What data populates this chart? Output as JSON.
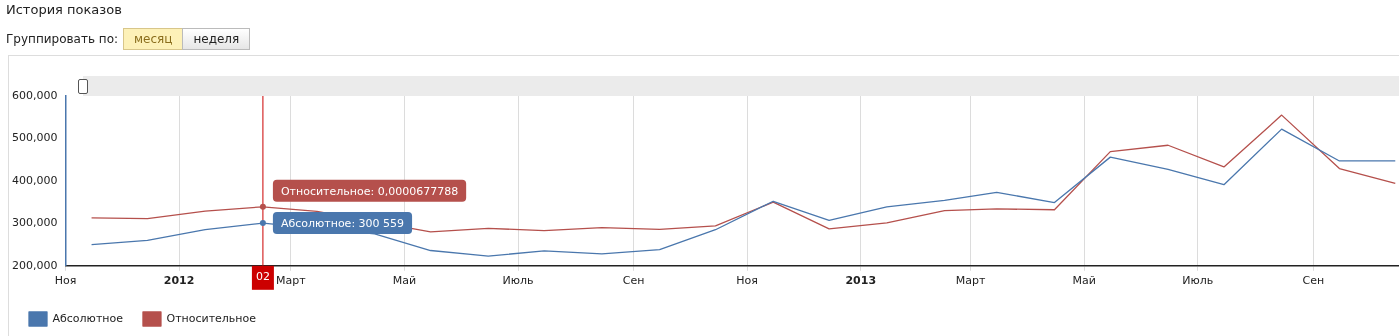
{
  "chart_data": {
    "type": "line",
    "title": "История показов",
    "x": [
      "2011-11-15",
      "2011-12-15",
      "2012-01-15",
      "2012-02-15",
      "2012-03-15",
      "2012-04-15",
      "2012-05-15",
      "2012-06-15",
      "2012-07-15",
      "2012-08-15",
      "2012-09-15",
      "2012-10-15",
      "2012-11-15",
      "2012-12-15",
      "2013-01-15",
      "2013-02-15",
      "2013-03-15",
      "2013-04-15",
      "2013-05-15",
      "2013-06-15",
      "2013-07-15",
      "2013-08-15",
      "2013-09-15",
      "2013-10-15"
    ],
    "series": [
      {
        "name": "Абсолютное",
        "color": "#4a77ad",
        "values": [
          250000,
          260000,
          285000,
          300559,
          null,
          275000,
          236000,
          223000,
          235000,
          228000,
          238000,
          285000,
          352000,
          307000,
          339000,
          354000,
          373000,
          349000,
          456000,
          427000,
          391000,
          522000,
          447000,
          447000
        ]
      },
      {
        "name": "Относительное",
        "color": "#b5504c",
        "values": [
          313000,
          311000,
          329000,
          339000,
          328000,
          null,
          280000,
          288000,
          283000,
          290000,
          286000,
          294000,
          350000,
          287000,
          301000,
          330000,
          334000,
          332000,
          469000,
          484000,
          433000,
          555000,
          429000,
          394000
        ]
      }
    ],
    "xlim": [
      "2011-11-01",
      "2013-10-17"
    ],
    "xticks": [
      {
        "value": "2011-11-01",
        "label": "Ноя"
      },
      {
        "value": "2012-01-01",
        "label": "2012"
      },
      {
        "value": "2012-03-01",
        "label": "Март"
      },
      {
        "value": "2012-05-01",
        "label": "Май"
      },
      {
        "value": "2012-07-01",
        "label": "Июль"
      },
      {
        "value": "2012-09-01",
        "label": "Сен"
      },
      {
        "value": "2012-11-01",
        "label": "Ноя"
      },
      {
        "value": "2013-01-01",
        "label": "2013"
      },
      {
        "value": "2013-03-01",
        "label": "Март"
      },
      {
        "value": "2013-05-01",
        "label": "Май"
      },
      {
        "value": "2013-07-01",
        "label": "Июль"
      },
      {
        "value": "2013-09-01",
        "label": "Сен"
      }
    ],
    "ylim": [
      200000,
      600000
    ],
    "yticks": [
      {
        "value": 200000,
        "label": "200,000"
      },
      {
        "value": 300000,
        "label": "300,000"
      },
      {
        "value": 400000,
        "label": "400,000"
      },
      {
        "value": 500000,
        "label": "500,000"
      },
      {
        "value": 600000,
        "label": "600,000"
      }
    ],
    "grid": "x",
    "legend": "bottom left",
    "marker": "none",
    "line_style": "solid",
    "ref_lines": [
      {
        "axis": "x",
        "value": "2012-02-15",
        "label": "02",
        "color": "#cc0000"
      }
    ],
    "annotations": [
      "Группировать по:",
      "месяц",
      "неделя",
      {
        "text": "Относительное: 0,0000677788",
        "x": "2012-02-15",
        "y": 339000
      },
      {
        "text": "Абсолютное: 300 559",
        "x": "2012-02-15",
        "y": 300559
      }
    ]
  }
}
